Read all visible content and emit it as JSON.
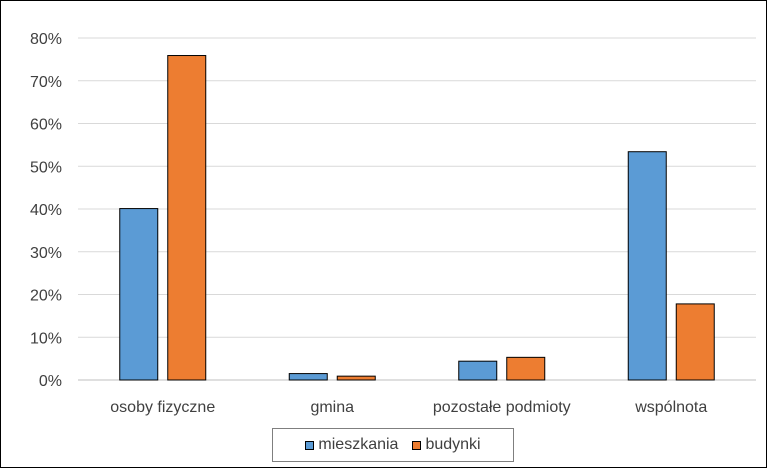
{
  "chart_data": {
    "type": "bar",
    "title": "",
    "xlabel": "",
    "ylabel": "",
    "ylim": [
      0,
      80
    ],
    "yticks": [
      "0%",
      "10%",
      "20%",
      "30%",
      "40%",
      "50%",
      "60%",
      "70%",
      "80%"
    ],
    "grid": true,
    "legend_position": "bottom",
    "categories": [
      "osoby fizyczne",
      "gmina",
      "pozostałe podmioty",
      "wspólnota"
    ],
    "series": [
      {
        "name": "mieszkania",
        "color": "#5b9bd5",
        "values": [
          40.1,
          1.5,
          4.4,
          53.4
        ]
      },
      {
        "name": "budynki",
        "color": "#ed7d31",
        "values": [
          75.9,
          0.9,
          5.3,
          17.8
        ]
      }
    ]
  }
}
